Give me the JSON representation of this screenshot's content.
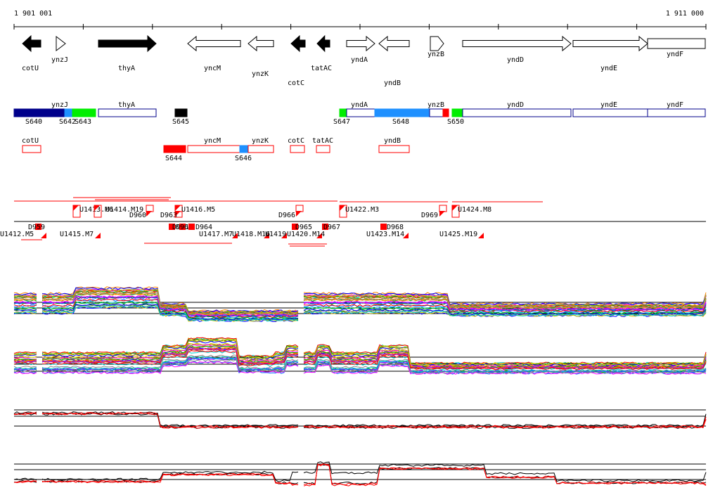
{
  "ruler": {
    "start": "1 901 001",
    "end": "1 911 000"
  },
  "genes": [
    "cotU",
    "ynzJ",
    "thyA",
    "yncM",
    "ynzK",
    "cotC",
    "tatAC",
    "yndA",
    "yndB",
    "ynzB",
    "yndD",
    "yndE",
    "yndF"
  ],
  "segments_top": {
    "genes": [
      "ynzJ",
      "thyA",
      "yndA",
      "ynzB",
      "yndD",
      "yndE",
      "yndF"
    ],
    "ids": [
      "S640",
      "S642",
      "S643",
      "S645",
      "S647",
      "S648",
      "S650"
    ]
  },
  "segments_bottom": {
    "genes": [
      "cotU",
      "yncM",
      "ynzK",
      "cotC",
      "tatAC",
      "yndB"
    ],
    "ids": [
      "S644",
      "S646"
    ]
  },
  "transcripts_top": [
    "U1413.M6",
    "U1414.M19",
    "D960",
    "D963",
    "U1416.M5",
    "D966",
    "U1422.M3",
    "D969",
    "U1424.M8"
  ],
  "transcripts_bottom": [
    "U1412.M5",
    "D959",
    "U1415.M7",
    "D961",
    "D962",
    "D964",
    "U1417.M7",
    "U1418.M16",
    "U1419",
    "U1420.M14",
    "D965",
    "D967",
    "U1423.M14",
    "D968",
    "U1425.M19"
  ]
}
